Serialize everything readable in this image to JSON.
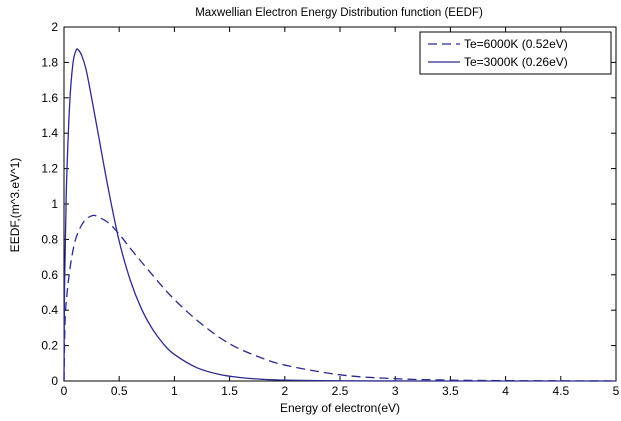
{
  "chart_data": {
    "type": "line",
    "title": "Maxwellian Electron Energy Distribution function (EEDF)",
    "xlabel": "Energy of electron(eV)",
    "ylabel": "EEDF,(m^3.eV^1)",
    "xlim": [
      0,
      5
    ],
    "ylim": [
      0,
      2
    ],
    "xticks": [
      "0",
      "0.5",
      "1",
      "1.5",
      "2",
      "2.5",
      "3",
      "3.5",
      "4",
      "4.5",
      "5"
    ],
    "yticks": [
      "0",
      "0.2",
      "0.4",
      "0.6",
      "0.8",
      "1",
      "1.2",
      "1.4",
      "1.6",
      "1.8",
      "2"
    ],
    "grid": false,
    "legend_position": "top-right",
    "series": [
      {
        "name": "Te=6000K (0.52eV)",
        "style": "dashed",
        "color": "#2b2b8f",
        "x": [
          0,
          0.01,
          0.03,
          0.06,
          0.1,
          0.15,
          0.2,
          0.26,
          0.3,
          0.4,
          0.5,
          0.6,
          0.8,
          1.0,
          1.25,
          1.5,
          1.75,
          2.0,
          2.5,
          3.0,
          3.5,
          4.0,
          4.5,
          5.0
        ],
        "y": [
          0,
          0.34,
          0.51,
          0.66,
          0.79,
          0.87,
          0.915,
          0.935,
          0.93,
          0.895,
          0.83,
          0.75,
          0.6,
          0.46,
          0.32,
          0.21,
          0.14,
          0.09,
          0.035,
          0.013,
          0.005,
          0.002,
          0.001,
          0
        ]
      },
      {
        "name": "Te=3000K (0.26eV)",
        "style": "solid",
        "color": "#2b2b8f",
        "x": [
          0,
          0.005,
          0.02,
          0.05,
          0.08,
          0.11,
          0.13,
          0.16,
          0.2,
          0.25,
          0.3,
          0.4,
          0.5,
          0.6,
          0.7,
          0.8,
          0.9,
          1.0,
          1.2,
          1.4,
          1.6,
          1.8,
          2.0,
          2.5,
          3.0,
          3.5,
          4.0,
          4.5,
          5.0
        ],
        "y": [
          0,
          0.53,
          1.05,
          1.55,
          1.79,
          1.87,
          1.87,
          1.84,
          1.76,
          1.6,
          1.43,
          1.09,
          0.79,
          0.57,
          0.41,
          0.295,
          0.21,
          0.15,
          0.076,
          0.038,
          0.019,
          0.0095,
          0.005,
          0.001,
          0.0002,
          0,
          0,
          0,
          0
        ]
      }
    ]
  }
}
